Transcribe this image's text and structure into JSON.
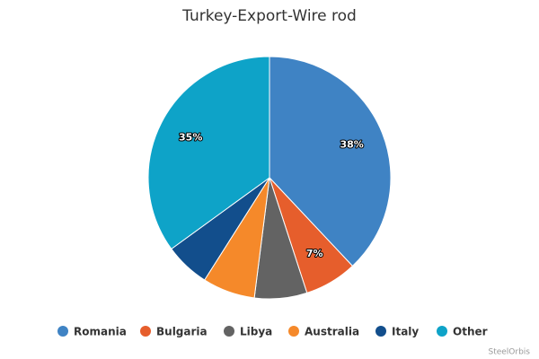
{
  "chart_data": {
    "type": "pie",
    "title": "Turkey-Export-Wire rod",
    "categories": [
      "Romania",
      "Bulgaria",
      "Libya",
      "Australia",
      "Italy",
      "Other"
    ],
    "values": [
      38,
      7,
      7,
      7,
      6,
      35
    ],
    "value_labels": [
      "38%",
      "7%",
      null,
      null,
      null,
      "35%"
    ],
    "colors": [
      "#3f83c4",
      "#e65e2c",
      "#636363",
      "#f5892a",
      "#124e8c",
      "#0ea3c8"
    ],
    "legend": "bottom",
    "credit": "SteelOrbis"
  }
}
